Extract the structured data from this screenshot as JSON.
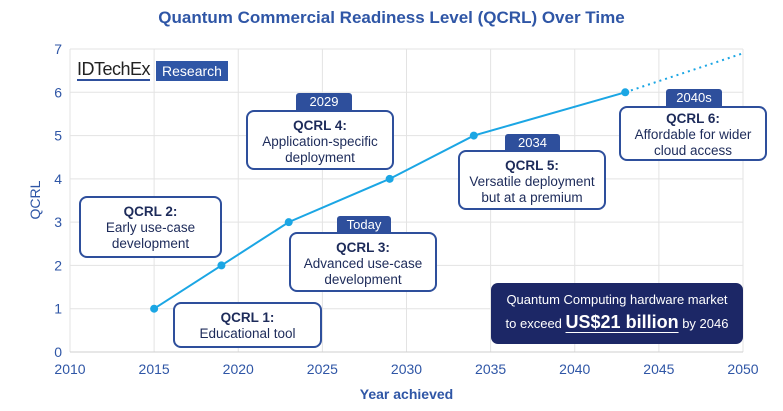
{
  "chart_data": {
    "type": "line",
    "title": "Quantum Commercial Readiness Level (QCRL) Over Time",
    "xlabel": "Year achieved",
    "ylabel": "QCRL",
    "xlim": [
      2010,
      2050
    ],
    "ylim": [
      0,
      7
    ],
    "xticks": [
      "2010",
      "2015",
      "2020",
      "2025",
      "2030",
      "2035",
      "2040",
      "2045",
      "2050"
    ],
    "yticks": [
      "0",
      "1",
      "2",
      "3",
      "4",
      "5",
      "6",
      "7"
    ],
    "grid": true,
    "series": [
      {
        "name": "QCRL",
        "x": [
          2015,
          2019,
          2023,
          2029,
          2034,
          2043
        ],
        "y": [
          1,
          2,
          3,
          4,
          5,
          6
        ]
      }
    ],
    "projection": {
      "style": "dotted",
      "x": [
        2043,
        2050
      ],
      "y": [
        6,
        6.9
      ]
    },
    "colors": {
      "line": "#1ba6e4",
      "axis_text": "#2f56a6"
    }
  },
  "logo": {
    "name": "IDTechEx",
    "suffix": "Research"
  },
  "annotations": [
    {
      "title": "QCRL 1:",
      "text": "Educational tool"
    },
    {
      "title": "QCRL 2:",
      "text": "Early use-case development"
    },
    {
      "title": "QCRL 3:",
      "text": "Advanced use-case development",
      "tag": "Today"
    },
    {
      "title": "QCRL 4:",
      "text": "Application-specific deployment",
      "tag": "2029"
    },
    {
      "title": "QCRL 5:",
      "text": "Versatile deployment but at a premium",
      "tag": "2034"
    },
    {
      "title": "QCRL 6:",
      "text": "Affordable for wider cloud access",
      "tag": "2040s"
    }
  ],
  "market": {
    "line1": "Quantum Computing hardware market",
    "pre": "to exceed",
    "value": "US$21 billion",
    "post": "by 2046"
  }
}
